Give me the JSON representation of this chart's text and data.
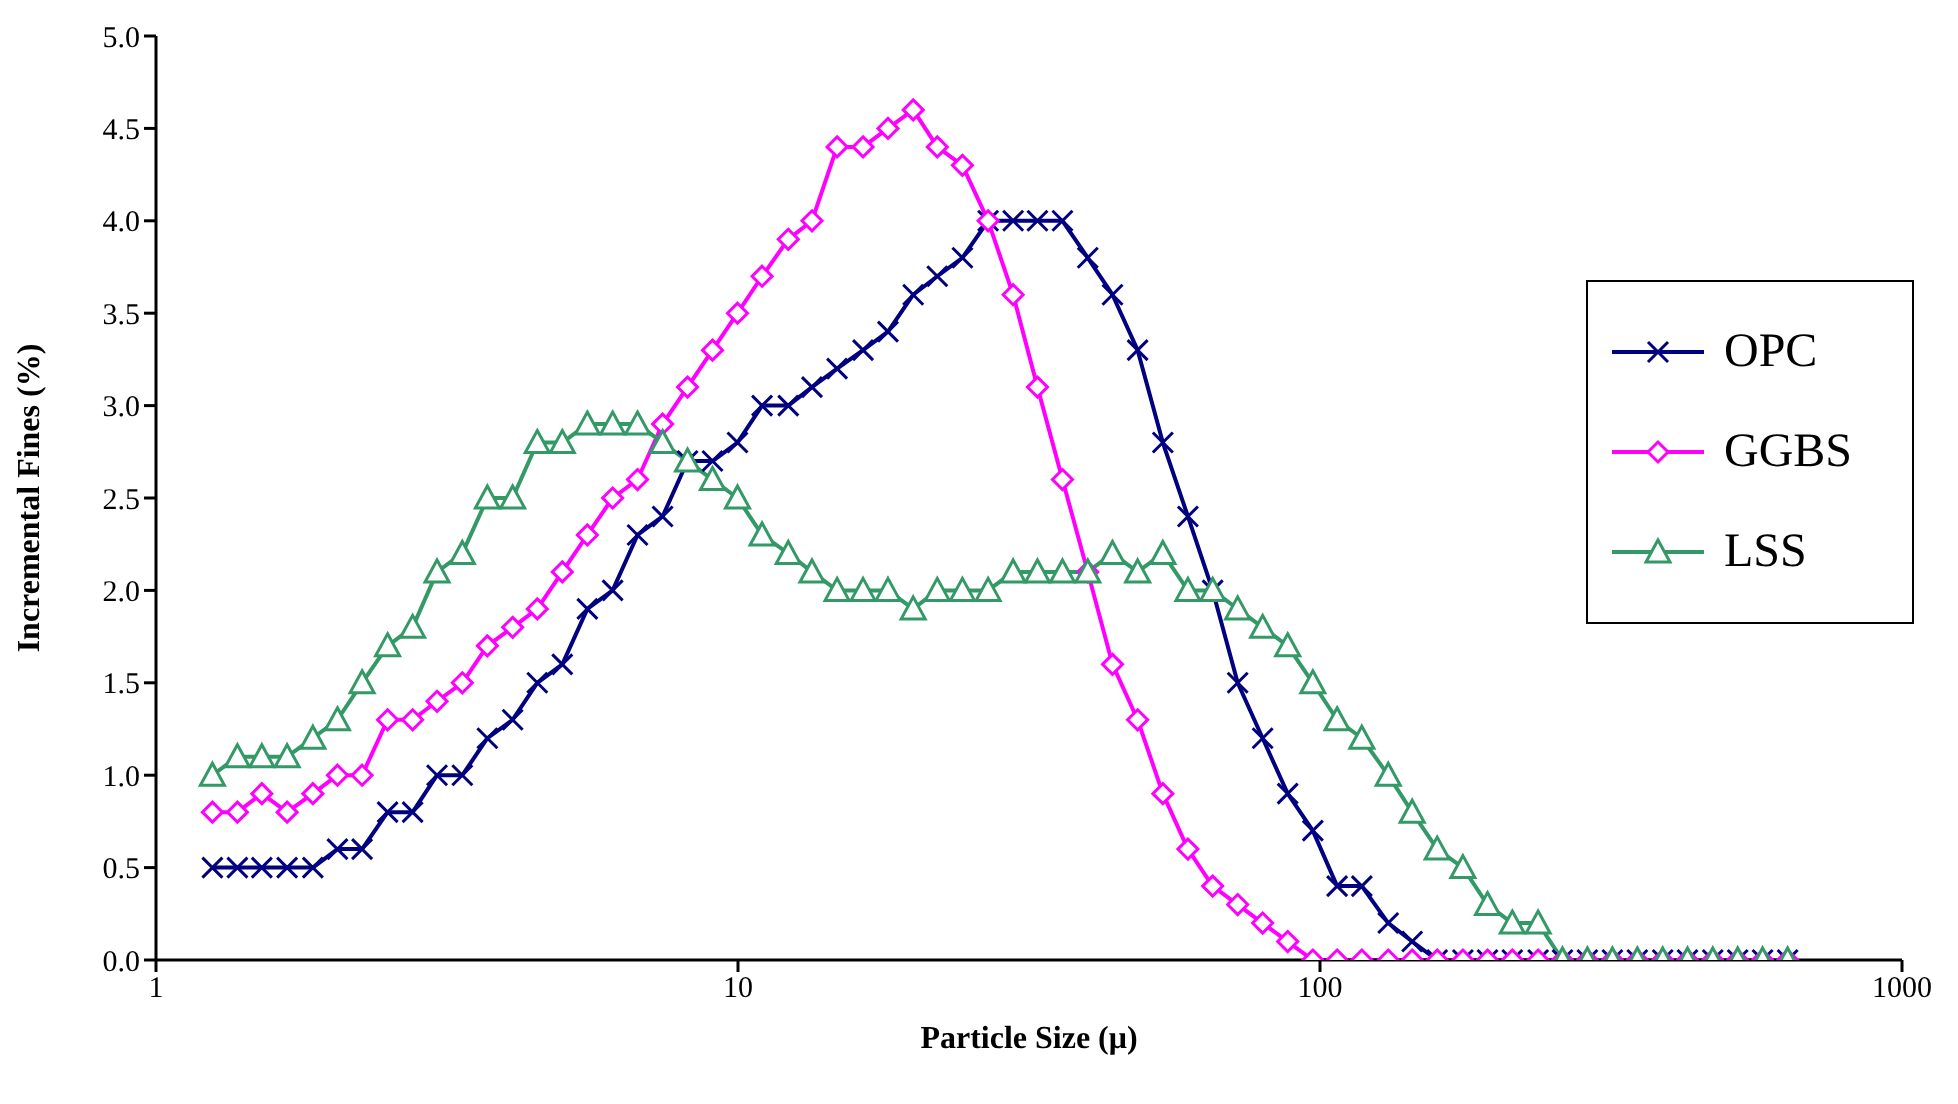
{
  "chart_data": {
    "type": "line",
    "xlabel": "Particle Size (μ)",
    "ylabel": "Incremental  Fines (%)",
    "log": "x",
    "x": [
      1.25,
      1.38,
      1.52,
      1.68,
      1.86,
      2.05,
      2.26,
      2.5,
      2.76,
      3.04,
      3.36,
      3.71,
      4.1,
      4.52,
      4.99,
      5.51,
      6.09,
      6.72,
      7.42,
      8.19,
      9.04,
      9.98,
      11.0,
      12.2,
      13.4,
      14.8,
      16.4,
      18.1,
      20.0,
      22.0,
      24.3,
      26.9,
      29.7,
      32.7,
      36.1,
      39.9,
      44.0,
      48.6,
      53.7,
      59.3,
      65.4,
      72.2,
      79.7,
      88.0,
      97.2,
      107,
      118,
      131,
      144,
      159,
      176,
      194,
      214,
      237,
      261,
      288,
      318,
      351,
      388,
      428,
      473,
      522,
      576,
      636
    ],
    "series": [
      {
        "name": "OPC",
        "color": "#000080",
        "marker": "cross",
        "values": [
          0.5,
          0.5,
          0.5,
          0.5,
          0.5,
          0.6,
          0.6,
          0.8,
          0.8,
          1.0,
          1.0,
          1.2,
          1.3,
          1.5,
          1.6,
          1.9,
          2.0,
          2.3,
          2.4,
          2.7,
          2.7,
          2.8,
          3.0,
          3.0,
          3.1,
          3.2,
          3.3,
          3.4,
          3.6,
          3.7,
          3.8,
          4.0,
          4.0,
          4.0,
          4.0,
          3.8,
          3.6,
          3.3,
          2.8,
          2.4,
          2.0,
          1.5,
          1.2,
          0.9,
          0.7,
          0.4,
          0.4,
          0.2,
          0.1,
          0,
          0,
          0,
          0,
          0,
          0,
          0,
          0,
          0,
          0,
          0,
          0,
          0,
          0,
          0
        ]
      },
      {
        "name": "GGBS",
        "color": "#ff00ff",
        "marker": "diamond",
        "values": [
          0.8,
          0.8,
          0.9,
          0.8,
          0.9,
          1.0,
          1.0,
          1.3,
          1.3,
          1.4,
          1.5,
          1.7,
          1.8,
          1.9,
          2.1,
          2.3,
          2.5,
          2.6,
          2.9,
          3.1,
          3.3,
          3.5,
          3.7,
          3.9,
          4.0,
          4.4,
          4.4,
          4.5,
          4.6,
          4.4,
          4.3,
          4.0,
          3.6,
          3.1,
          2.6,
          2.1,
          1.6,
          1.3,
          0.9,
          0.6,
          0.4,
          0.3,
          0.2,
          0.1,
          0,
          0,
          0,
          0,
          0,
          0,
          0,
          0,
          0,
          0,
          0,
          0,
          0,
          0,
          0,
          0,
          0,
          0,
          0,
          0
        ]
      },
      {
        "name": "LSS",
        "color": "#339966",
        "marker": "triangle",
        "values": [
          1.0,
          1.1,
          1.1,
          1.1,
          1.2,
          1.3,
          1.5,
          1.7,
          1.8,
          2.1,
          2.2,
          2.5,
          2.5,
          2.8,
          2.8,
          2.9,
          2.9,
          2.9,
          2.8,
          2.7,
          2.6,
          2.5,
          2.3,
          2.2,
          2.1,
          2.0,
          2.0,
          2.0,
          1.9,
          2.0,
          2.0,
          2.0,
          2.1,
          2.1,
          2.1,
          2.1,
          2.2,
          2.1,
          2.2,
          2.0,
          2.0,
          1.9,
          1.8,
          1.7,
          1.5,
          1.3,
          1.2,
          1.0,
          0.8,
          0.6,
          0.5,
          0.3,
          0.2,
          0.2,
          0,
          0,
          0,
          0,
          0,
          0,
          0,
          0,
          0,
          0
        ]
      }
    ],
    "xlim": [
      1,
      1000
    ],
    "xticks": [
      1,
      10,
      100,
      1000
    ],
    "ylim": [
      0,
      5
    ],
    "yticks": [
      {
        "value": 0,
        "label": "0.0"
      },
      {
        "value": 0.5,
        "label": "0.5"
      },
      {
        "value": 1,
        "label": "1.0"
      },
      {
        "value": 1.5,
        "label": "1.5"
      },
      {
        "value": 2,
        "label": "2.0"
      },
      {
        "value": 2.5,
        "label": "2.5"
      },
      {
        "value": 3,
        "label": "3.0"
      },
      {
        "value": 3.5,
        "label": "3.5"
      },
      {
        "value": 4,
        "label": "4.0"
      },
      {
        "value": 4.5,
        "label": "4.5"
      },
      {
        "value": 5,
        "label": "5.0"
      }
    ],
    "grid": false,
    "legend": "right"
  }
}
